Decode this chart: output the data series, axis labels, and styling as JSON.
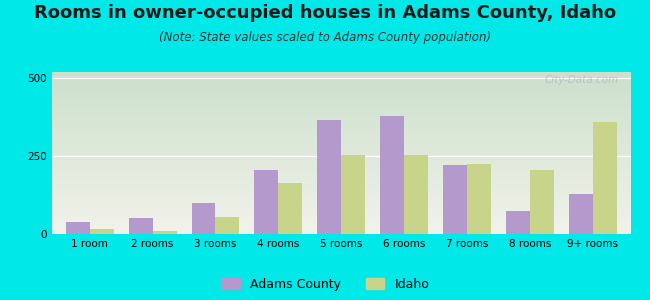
{
  "title": "Rooms in owner-occupied houses in Adams County, Idaho",
  "subtitle": "(Note: State values scaled to Adams County population)",
  "categories": [
    "1 room",
    "2 rooms",
    "3 rooms",
    "4 rooms",
    "5 rooms",
    "6 rooms",
    "7 rooms",
    "8 rooms",
    "9+ rooms"
  ],
  "adams_county": [
    40,
    50,
    100,
    205,
    365,
    380,
    220,
    75,
    130
  ],
  "idaho": [
    15,
    10,
    55,
    165,
    255,
    255,
    225,
    205,
    360
  ],
  "adams_color": "#b399cc",
  "idaho_color": "#c8d48a",
  "background_outer": "#00e8e8",
  "background_plot_top": "#cce0cc",
  "background_plot_bottom": "#f2f2ea",
  "ylim": [
    0,
    520
  ],
  "yticks": [
    0,
    250,
    500
  ],
  "bar_width": 0.38,
  "title_fontsize": 13,
  "subtitle_fontsize": 8.5,
  "legend_fontsize": 9,
  "tick_fontsize": 7.5,
  "watermark": "City-Data.com"
}
